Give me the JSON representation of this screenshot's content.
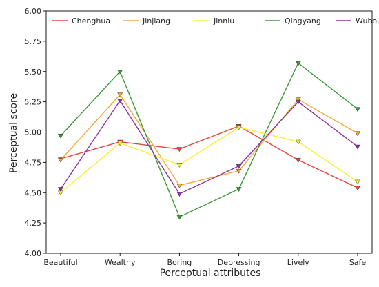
{
  "chart_data": {
    "type": "line",
    "title": "",
    "xlabel": "Perceptual attributes",
    "ylabel": "Perceptual score",
    "categories": [
      "Beautiful",
      "Wealthy",
      "Boring",
      "Depressing",
      "Lively",
      "Safe"
    ],
    "ylim": [
      4.0,
      6.0
    ],
    "yticks": [
      "4.00",
      "4.25",
      "4.50",
      "4.75",
      "5.00",
      "5.25",
      "5.50",
      "5.75",
      "6.00"
    ],
    "grid": false,
    "legend_position": "top",
    "marker": "triangle-down",
    "series": [
      {
        "name": "Chenghua",
        "color": "#e8423f",
        "values": [
          4.78,
          4.92,
          4.86,
          5.05,
          4.77,
          4.54
        ]
      },
      {
        "name": "Jinjiang",
        "color": "#f2a93b",
        "values": [
          4.77,
          5.31,
          4.56,
          4.68,
          5.27,
          4.99
        ]
      },
      {
        "name": "Jinniu",
        "color": "#f7f230",
        "values": [
          4.5,
          4.91,
          4.73,
          5.04,
          4.92,
          4.59
        ]
      },
      {
        "name": "Qingyang",
        "color": "#3b9a35",
        "values": [
          4.97,
          5.5,
          4.3,
          4.53,
          5.57,
          5.19
        ]
      },
      {
        "name": "Wuhou",
        "color": "#8e34a0",
        "values": [
          4.53,
          5.26,
          4.49,
          4.72,
          5.25,
          4.88
        ]
      }
    ]
  }
}
